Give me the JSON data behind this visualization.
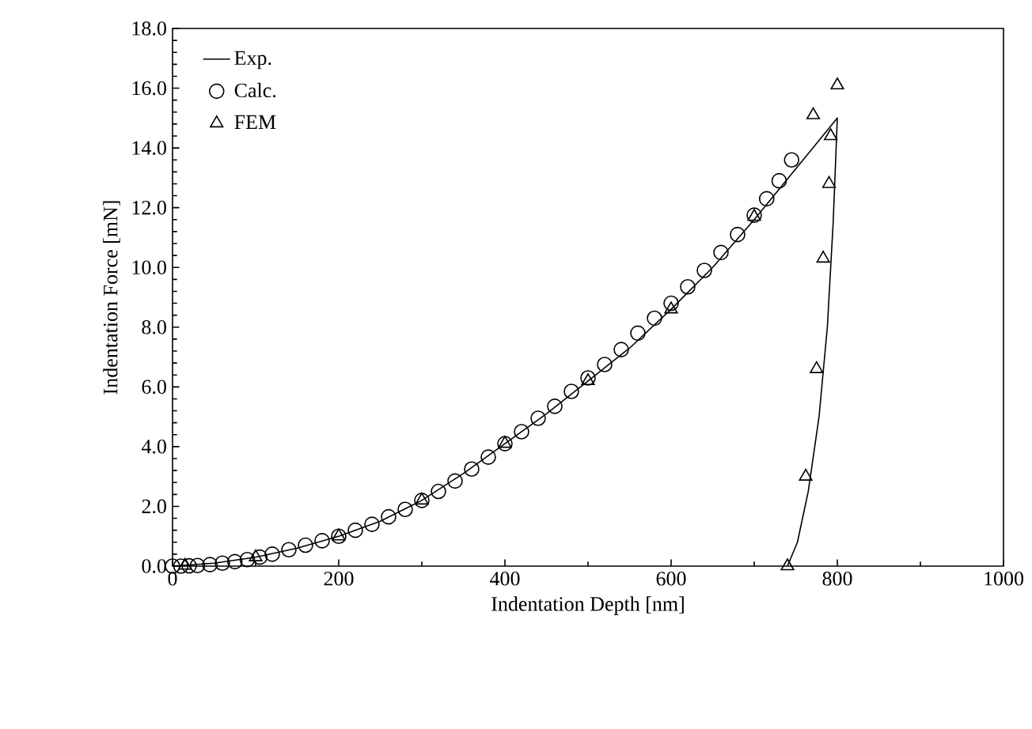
{
  "chart_data": {
    "type": "line",
    "xlabel": "Indentation Depth [nm]",
    "ylabel": "Indentation Force [mN]",
    "xlim": [
      0,
      1000
    ],
    "xticks": [
      0,
      200,
      400,
      600,
      800,
      1000
    ],
    "ylim": [
      0,
      18
    ],
    "yticks": [
      {
        "value": 0,
        "label": "0.0"
      },
      {
        "value": 2,
        "label": "2.0"
      },
      {
        "value": 4,
        "label": "4.0"
      },
      {
        "value": 6,
        "label": "6.0"
      },
      {
        "value": 8,
        "label": "8.0"
      },
      {
        "value": 10,
        "label": "10.0"
      },
      {
        "value": 12,
        "label": "12.0"
      },
      {
        "value": 14,
        "label": "14.0"
      },
      {
        "value": 16,
        "label": "16.0"
      },
      {
        "value": 18,
        "label": "18.0"
      }
    ],
    "grid": false,
    "legend": "top left",
    "series": [
      {
        "name": "Exp.",
        "color": "#000000",
        "marker": "none",
        "x": [
          0,
          50,
          100,
          150,
          200,
          250,
          300,
          350,
          400,
          450,
          500,
          550,
          600,
          650,
          700,
          750,
          800,
          795,
          788,
          778,
          765,
          752,
          740
        ],
        "values": [
          0,
          0.1,
          0.3,
          0.6,
          1.0,
          1.5,
          2.2,
          3.1,
          4.1,
          5.1,
          6.2,
          7.3,
          8.6,
          10.0,
          11.6,
          13.3,
          15.0,
          11.5,
          8.0,
          5.0,
          2.5,
          0.8,
          0
        ]
      },
      {
        "name": "Calc.",
        "type": "scatter",
        "color": "#000000",
        "marker": "circle",
        "x": [
          0,
          10,
          20,
          30,
          45,
          60,
          75,
          90,
          105,
          120,
          140,
          160,
          180,
          200,
          220,
          240,
          260,
          280,
          300,
          320,
          340,
          360,
          380,
          400,
          420,
          440,
          460,
          480,
          500,
          520,
          540,
          560,
          580,
          600,
          620,
          640,
          660,
          680,
          700,
          715,
          730,
          745
        ],
        "values": [
          0,
          0,
          0.01,
          0.02,
          0.05,
          0.1,
          0.15,
          0.22,
          0.3,
          0.4,
          0.55,
          0.7,
          0.85,
          1.0,
          1.2,
          1.4,
          1.65,
          1.9,
          2.2,
          2.5,
          2.85,
          3.25,
          3.65,
          4.1,
          4.5,
          4.95,
          5.35,
          5.85,
          6.3,
          6.75,
          7.25,
          7.8,
          8.3,
          8.8,
          9.35,
          9.9,
          10.5,
          11.1,
          11.75,
          12.3,
          12.9,
          13.6
        ]
      },
      {
        "name": "FEM",
        "type": "scatter",
        "color": "#000000",
        "marker": "triangle",
        "x": [
          15,
          100,
          200,
          300,
          400,
          500,
          600,
          700,
          771,
          792,
          800,
          790,
          783,
          775,
          762,
          740
        ],
        "values": [
          0.02,
          0.3,
          1.0,
          2.2,
          4.1,
          6.2,
          8.6,
          11.7,
          15.1,
          14.4,
          16.1,
          12.8,
          10.3,
          6.6,
          3.0,
          0.0
        ]
      }
    ]
  }
}
